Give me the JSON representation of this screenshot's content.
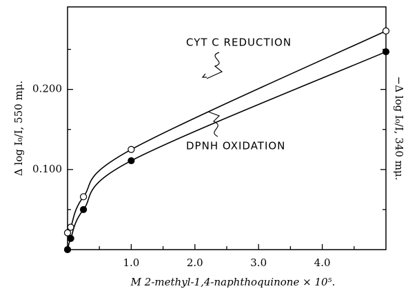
{
  "chart_data": {
    "type": "line",
    "x_label": "M 2-methyl-1,4-naphthoquinone × 10⁵.",
    "y_label": "Δ log I₀/I, 550 mμ.",
    "y2_label": "−Δ log I₀/I, 340 mμ.",
    "annotations": [
      "CYT C REDUCTION",
      "DPNH OXIDATION"
    ],
    "series": [
      {
        "marker": "open",
        "color": "#000000",
        "x": [
          0,
          0.05,
          0.25,
          1.0,
          5.0
        ],
        "values": [
          0.021,
          0.028,
          0.066,
          0.125,
          0.273
        ]
      },
      {
        "marker": "filled",
        "color": "#000000",
        "x": [
          0,
          0.05,
          0.25,
          1.0,
          5.0
        ],
        "values": [
          0,
          0.014,
          0.05,
          0.111,
          0.247
        ]
      }
    ],
    "xlim": [
      0,
      5
    ],
    "ylim": [
      0,
      0.303
    ],
    "xticks": [
      {
        "value": 1,
        "label": "1.0"
      },
      {
        "value": 2,
        "label": "2.0"
      },
      {
        "value": 3,
        "label": "3.0"
      },
      {
        "value": 4,
        "label": "4.0"
      }
    ],
    "xminorticks": [
      0.5,
      1.5,
      2.5,
      3.5,
      4.5
    ],
    "yticks": [
      {
        "value": 0.1,
        "label": "0.100"
      },
      {
        "value": 0.2,
        "label": "0.200"
      }
    ],
    "yminorticks": [
      0.05,
      0.15,
      0.25
    ]
  }
}
